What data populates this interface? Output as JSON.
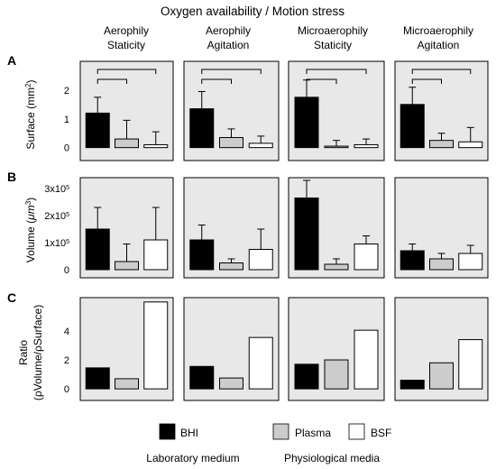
{
  "figure": {
    "title": "Oxygen availability / Motion stress",
    "conditions": [
      {
        "line1": "Aerophily",
        "line2": "Staticity"
      },
      {
        "line1": "Aerophily",
        "line2": "Agitation"
      },
      {
        "line1": "Microaerophily",
        "line2": "Staticity"
      },
      {
        "line1": "Microaerophily",
        "line2": "Agitation"
      }
    ],
    "colors": {
      "panel_bg": "#e8e8e8",
      "BHI": "#000000",
      "Plasma": "#cccccc",
      "BSF": "#ffffff"
    },
    "legend": {
      "items": [
        {
          "name": "BHI",
          "color": "#000000"
        },
        {
          "name": "Plasma",
          "color": "#cccccc"
        },
        {
          "name": "BSF",
          "color": "#ffffff"
        }
      ],
      "group_labels": [
        "Laboratory medium",
        "Physiological media"
      ]
    }
  },
  "chart_data": [
    {
      "type": "bar",
      "panel_label": "A",
      "ylabel": "Surface (mm²)",
      "yticks": [
        {
          "v": 0,
          "label": "0"
        },
        {
          "v": 1,
          "label": "1"
        },
        {
          "v": 2,
          "label": "2"
        }
      ],
      "ylim": [
        -0.45,
        3.0
      ],
      "categories": [
        "BHI",
        "Plasma",
        "BSF"
      ],
      "error_bars": true,
      "significance_brackets": true,
      "panels": [
        {
          "condition": "Aerophily Staticity",
          "values": [
            1.2,
            0.3,
            0.1
          ],
          "errors": [
            0.55,
            0.65,
            0.45
          ]
        },
        {
          "condition": "Aerophily Agitation",
          "values": [
            1.35,
            0.35,
            0.15
          ],
          "errors": [
            0.6,
            0.3,
            0.25
          ]
        },
        {
          "condition": "Microaerophily Staticity",
          "values": [
            1.75,
            0.05,
            0.1
          ],
          "errors": [
            0.6,
            0.2,
            0.2
          ]
        },
        {
          "condition": "Microaerophily Agitation",
          "values": [
            1.5,
            0.25,
            0.2
          ],
          "errors": [
            0.6,
            0.25,
            0.5
          ]
        }
      ]
    },
    {
      "type": "bar",
      "panel_label": "B",
      "ylabel": "Volume (μm³)",
      "yticks": [
        {
          "v": 0,
          "label": "0"
        },
        {
          "v": 100000,
          "label": "1x10^5"
        },
        {
          "v": 200000,
          "label": "2x10^5"
        },
        {
          "v": 300000,
          "label": "3x10^5"
        }
      ],
      "ylim": [
        -30000,
        340000
      ],
      "categories": [
        "BHI",
        "Plasma",
        "BSF"
      ],
      "error_bars": true,
      "panels": [
        {
          "condition": "Aerophily Staticity",
          "values": [
            150000,
            30000,
            110000
          ],
          "errors": [
            80000,
            65000,
            120000
          ]
        },
        {
          "condition": "Aerophily Agitation",
          "values": [
            110000,
            25000,
            75000
          ],
          "errors": [
            55000,
            15000,
            75000
          ]
        },
        {
          "condition": "Microaerophily Staticity",
          "values": [
            265000,
            20000,
            95000
          ],
          "errors": [
            65000,
            20000,
            30000
          ]
        },
        {
          "condition": "Microaerophily Agitation",
          "values": [
            70000,
            40000,
            60000
          ],
          "errors": [
            25000,
            20000,
            30000
          ]
        }
      ]
    },
    {
      "type": "bar",
      "panel_label": "C",
      "ylabel": "Ratio",
      "ylabel2": "(ρVolume/ρSurface)",
      "yticks": [
        {
          "v": 0,
          "label": "0"
        },
        {
          "v": 2,
          "label": "2"
        },
        {
          "v": 4,
          "label": "4"
        }
      ],
      "ylim": [
        -0.8,
        6.3
      ],
      "categories": [
        "BHI",
        "Plasma",
        "BSF"
      ],
      "error_bars": false,
      "panels": [
        {
          "condition": "Aerophily Staticity",
          "values": [
            1.45,
            0.7,
            6.0
          ]
        },
        {
          "condition": "Aerophily Agitation",
          "values": [
            1.55,
            0.75,
            3.55
          ]
        },
        {
          "condition": "Microaerophily Staticity",
          "values": [
            1.7,
            2.0,
            4.05
          ]
        },
        {
          "condition": "Microaerophily Agitation",
          "values": [
            0.6,
            1.8,
            3.4
          ]
        }
      ]
    }
  ]
}
